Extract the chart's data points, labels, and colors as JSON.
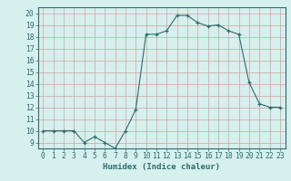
{
  "x": [
    0,
    1,
    2,
    3,
    4,
    5,
    6,
    7,
    8,
    9,
    10,
    11,
    12,
    13,
    14,
    15,
    16,
    17,
    18,
    19,
    20,
    21,
    22,
    23
  ],
  "y": [
    10,
    10,
    10,
    10,
    9,
    9.5,
    9,
    8.5,
    10,
    11.8,
    18.2,
    18.2,
    18.5,
    19.8,
    19.8,
    19.2,
    18.9,
    19.0,
    18.5,
    18.2,
    14.1,
    12.3,
    12.0,
    12.0
  ],
  "line_color": "#2e6b6b",
  "marker_color": "#2e6b6b",
  "bg_color": "#d6f0ee",
  "grid_major_color": "#c4e4e0",
  "grid_minor_color": "#c4e4e0",
  "xlabel": "Humidex (Indice chaleur)",
  "ylim": [
    8.5,
    20.5
  ],
  "xlim": [
    -0.5,
    23.5
  ],
  "yticks": [
    9,
    10,
    11,
    12,
    13,
    14,
    15,
    16,
    17,
    18,
    19,
    20
  ],
  "xticks": [
    0,
    1,
    2,
    3,
    4,
    5,
    6,
    7,
    8,
    9,
    10,
    11,
    12,
    13,
    14,
    15,
    16,
    17,
    18,
    19,
    20,
    21,
    22,
    23
  ],
  "label_fontsize": 6.5,
  "tick_fontsize": 5.8,
  "tick_color": "#2e6b6b",
  "spine_color": "#2e6b6b"
}
